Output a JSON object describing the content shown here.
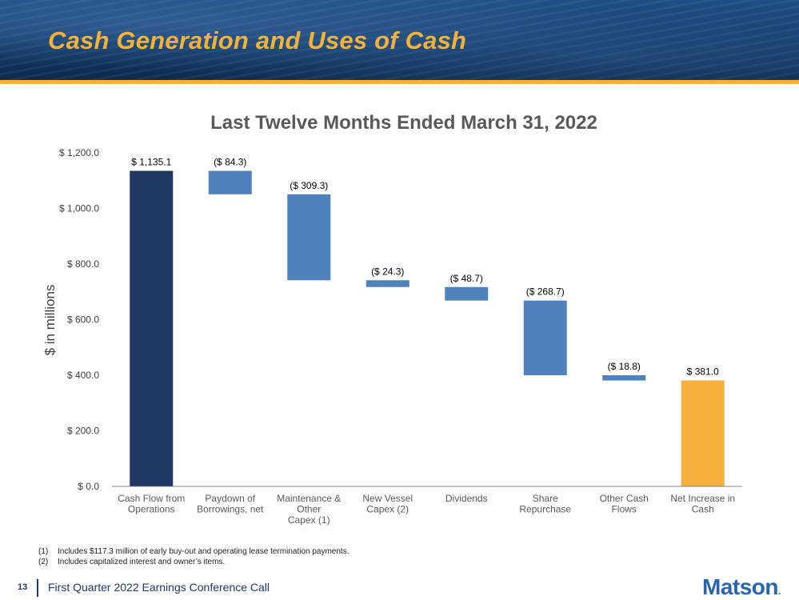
{
  "slide": {
    "title": "Cash Generation and Uses of Cash"
  },
  "chart_data": {
    "type": "bar",
    "subtype": "waterfall",
    "title": "Last Twelve Months Ended March 31, 2022",
    "ylabel": "$ in millions",
    "ylim": [
      0,
      1200
    ],
    "yticks": [
      0,
      200,
      400,
      600,
      800,
      1000,
      1200
    ],
    "ytick_labels": [
      "$ 0.0",
      "$ 200.0",
      "$ 400.0",
      "$ 600.0",
      "$ 800.0",
      "$ 1,000.0",
      "$ 1,200.0"
    ],
    "categories": [
      [
        "Cash Flow from",
        "Operations"
      ],
      [
        "Paydown of",
        "Borrowings, net"
      ],
      [
        "Maintenance &",
        "Other",
        "Capex (1)"
      ],
      [
        "New Vessel",
        "Capex (2)"
      ],
      [
        "Dividends"
      ],
      [
        "Share",
        "Repurchase"
      ],
      [
        "Other Cash",
        "Flows"
      ],
      [
        "Net Increase in",
        "Cash"
      ]
    ],
    "values": [
      1135.1,
      -84.3,
      -309.3,
      -24.3,
      -48.7,
      -268.7,
      -18.8,
      381.0
    ],
    "kinds": [
      "total",
      "delta",
      "delta",
      "delta",
      "delta",
      "delta",
      "delta",
      "total"
    ],
    "data_labels": [
      "$ 1,135.1",
      "($ 84.3)",
      "($ 309.3)",
      "($ 24.3)",
      "($ 48.7)",
      "($ 268.7)",
      "($ 18.8)",
      "$ 381.0"
    ],
    "colors": {
      "start_total": "#1f3864",
      "delta": "#4f81bd",
      "end_total": "#f7b03b"
    },
    "grid": false,
    "legend": "none"
  },
  "footnotes": [
    {
      "num": "(1)",
      "text": "Includes $117.3 million of early buy-out and operating lease termination payments."
    },
    {
      "num": "(2)",
      "text": "Includes capitalized interest and owner’s items."
    }
  ],
  "footer": {
    "page_number": "13",
    "event": "First Quarter 2022 Earnings Conference Call",
    "logo_text": "Matson",
    "logo_mark": "."
  }
}
